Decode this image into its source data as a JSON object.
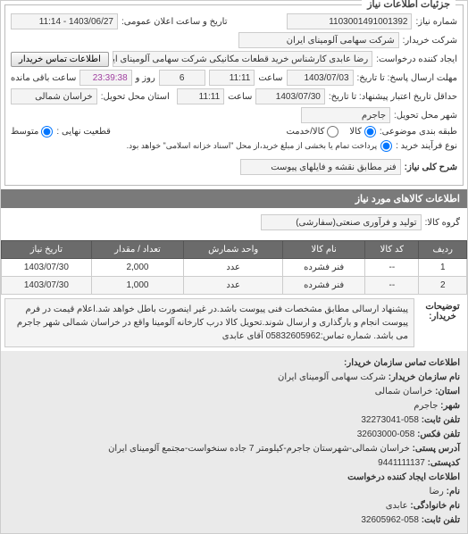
{
  "groupTitles": {
    "main": "جزئیات اطلاعات نیاز"
  },
  "labels": {
    "reqNo": "شماره نیاز:",
    "announceDateTime": "تاریخ و ساعت اعلان عمومی:",
    "buyerCompany": "شرکت خریدار:",
    "requester": "ایجاد کننده درخواست:",
    "deadlineFrom": "مهلت ارسال پاسخ: تا تاریخ:",
    "deadlineUntil": "حداقل تاریخ اعتبار پیشنهاد: تا تاریخ:",
    "hour": "ساعت",
    "and": "و",
    "day": "روز",
    "remaining": "ساعت باقی مانده",
    "deliveryProvince": "استان محل تحویل:",
    "deliveryCity": "شهر محل تحویل:",
    "packaging": "طبقه بندی موضوعی:",
    "buyType": "نوع فرآیند خرید :",
    "generalDesc": "شرح کلی نیاز:",
    "itemsTitle": "اطلاعات کالاهای مورد نیاز",
    "goodsGroup": "گروه کالا:",
    "buyerDesc": "توضیحات خریدار:",
    "contactBtn": "اطلاعات تماس خریدار",
    "radioGood": "کالا",
    "radioService": "کالا/خدمت",
    "radioAvg": "متوسط",
    "radioFinal": "قطعیت نهایی :",
    "buyNote": "پرداخت تمام یا بخشی از مبلغ خرید،از محل \"اسناد خزانه اسلامی\" خواهد بود.",
    "orgInfoTitle": "اطلاعات تماس سازمان خریدار:",
    "orgName": "نام سازمان خریدار:",
    "province": "استان:",
    "city": "شهر:",
    "phone": "تلفن ثابت:",
    "fax": "تلفن فکس:",
    "postAddr": "آدرس پستی:",
    "postCode": "کدپستی:",
    "creatorInfo": "اطلاعات ایجاد کننده درخواست",
    "name": "نام:",
    "family": "نام خانوادگی:",
    "phone2": "تلفن ثابت:"
  },
  "fields": {
    "reqNo": "1103001491001392",
    "announceDateTime": "1403/06/27 - 11:14",
    "buyerCompany": "شرکت سهامی آلومینای ایران",
    "requester": "رضا عابدی کارشناس خرید قطعات مکانیکی شرکت سهامی آلومینای ایران",
    "deadlineDate1": "1403/07/03",
    "deadlineHour1": "11:11",
    "remainDays": "6",
    "remainHours": "23:39:38",
    "deadlineDate2": "1403/07/30",
    "deadlineHour2": "11:11",
    "province": "خراسان شمالی",
    "city": "جاجرم",
    "generalDesc": "فنر مطابق نقشه و فایلهای پیوست",
    "goodsGroup": "تولید و فرآوری صنعتی(سفارشی)",
    "buyerDesc": "پیشنهاد ارسالی مطابق مشخصات فنی پیوست باشد.در غیر اینصورت باطل خواهد شد.اعلام قیمت در فرم پیوست انجام و بارگذاری و ارسال شوند.تحویل کالا درب کارخانه آلومینا واقع در خراسان شمالی شهر جاجرم می باشد. شماره تماس:05832605962 آقای عابدی"
  },
  "radios": {
    "packagingSelected": "good",
    "finalSelected": "avg"
  },
  "table": {
    "headers": [
      "ردیف",
      "کد کالا",
      "نام کالا",
      "واحد شمارش",
      "تعداد / مقدار",
      "تاریخ نیاز"
    ],
    "rows": [
      [
        "1",
        "--",
        "فنر فشرده",
        "عدد",
        "2,000",
        "1403/07/30"
      ],
      [
        "2",
        "--",
        "فنر فشرده",
        "عدد",
        "1,000",
        "1403/07/30"
      ]
    ]
  },
  "org": {
    "name": "شرکت سهامی آلومینای ایران",
    "province": "خراسان شمالی",
    "city": "جاجرم",
    "phone": "058-32273041",
    "fax": "058-32603000",
    "addr": "خراسان شمالی-شهرستان جاجرم-کیلومتر 7 جاده سنخواست-مجتمع آلومینای ایران",
    "postCode": "9441111137",
    "creatorName": "رضا",
    "creatorFamily": "عابدی",
    "creatorPhone": "058-32605962"
  },
  "colors": {
    "barBg": "#7a7a7a",
    "barFg": "#ffffff",
    "fieldBg": "#f4f4f4",
    "remainColor": "#a040a0"
  }
}
